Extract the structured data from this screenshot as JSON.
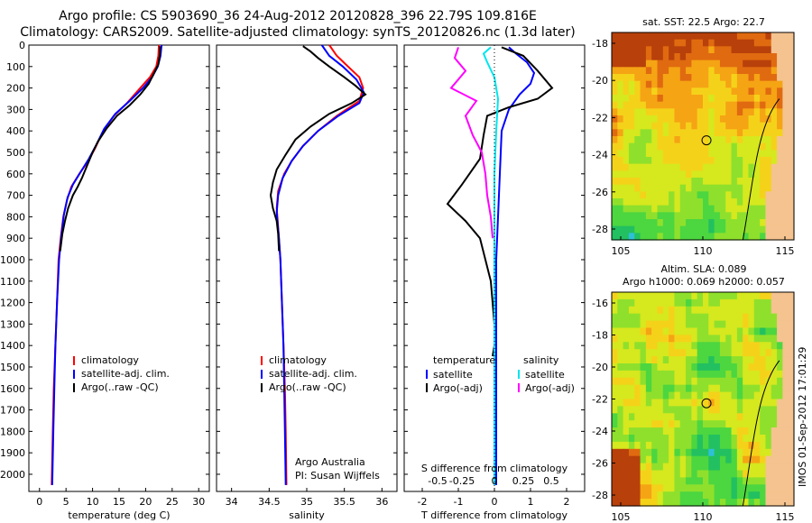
{
  "header": {
    "line1": "Argo profile: CS 5903690_36 24-Aug-2012 20120828_396 22.79S 109.816E",
    "line2": "Climatology: CARS2009. Satellite-adjusted climatology: synTS_20120826.nc (1.3d later)"
  },
  "colors": {
    "climatology": "#ff0000",
    "satellite": "#0000ff",
    "argo": "#000000",
    "sat_salinity": "#00e5ee",
    "argo_salinity_diff": "#ff00ff"
  },
  "chart_data": [
    {
      "type": "line",
      "xlabel": "temperature (deg C)",
      "xlim": [
        -2,
        32
      ],
      "xticks": [
        0,
        5,
        10,
        15,
        20,
        25,
        30
      ],
      "ylim": [
        2080,
        0
      ],
      "yticks": [
        0,
        100,
        200,
        300,
        400,
        500,
        600,
        700,
        800,
        900,
        1000,
        1100,
        1200,
        1300,
        1400,
        1500,
        1600,
        1700,
        1800,
        1900,
        2000
      ],
      "legend": [
        "climatology",
        "satellite-adj. clim.",
        "Argo(..raw -QC)"
      ],
      "series": [
        {
          "name": "climatology",
          "color": "#ff0000",
          "points": [
            [
              22.5,
              0
            ],
            [
              22.4,
              50
            ],
            [
              22.0,
              100
            ],
            [
              20.8,
              150
            ],
            [
              19.0,
              200
            ],
            [
              16.5,
              270
            ],
            [
              14.0,
              330
            ],
            [
              12.0,
              400
            ],
            [
              10.5,
              480
            ],
            [
              9.2,
              540
            ],
            [
              7.5,
              600
            ],
            [
              6.0,
              660
            ],
            [
              5.2,
              720
            ],
            [
              4.5,
              800
            ],
            [
              4.0,
              900
            ],
            [
              3.6,
              1000
            ],
            [
              3.3,
              1200
            ],
            [
              3.0,
              1400
            ],
            [
              2.7,
              1600
            ],
            [
              2.5,
              1800
            ],
            [
              2.3,
              2050
            ]
          ]
        },
        {
          "name": "satellite-adj. clim.",
          "color": "#0000ff",
          "points": [
            [
              23.0,
              0
            ],
            [
              22.8,
              50
            ],
            [
              22.3,
              100
            ],
            [
              21.2,
              150
            ],
            [
              19.5,
              200
            ],
            [
              17.0,
              260
            ],
            [
              14.3,
              320
            ],
            [
              12.2,
              390
            ],
            [
              10.6,
              470
            ],
            [
              9.3,
              530
            ],
            [
              7.8,
              590
            ],
            [
              6.3,
              650
            ],
            [
              5.3,
              710
            ],
            [
              4.6,
              790
            ],
            [
              4.1,
              890
            ],
            [
              3.7,
              1000
            ],
            [
              3.3,
              1200
            ],
            [
              3.0,
              1400
            ],
            [
              2.8,
              1600
            ],
            [
              2.6,
              1800
            ],
            [
              2.4,
              2050
            ]
          ]
        },
        {
          "name": "Argo(..raw -QC)",
          "color": "#000000",
          "points": [
            [
              22.7,
              5
            ],
            [
              22.7,
              40
            ],
            [
              22.4,
              90
            ],
            [
              21.6,
              130
            ],
            [
              20.6,
              180
            ],
            [
              19.0,
              230
            ],
            [
              17.0,
              280
            ],
            [
              14.6,
              330
            ],
            [
              12.6,
              390
            ],
            [
              11.0,
              450
            ],
            [
              10.0,
              500
            ],
            [
              9.0,
              560
            ],
            [
              8.0,
              620
            ],
            [
              7.2,
              660
            ],
            [
              6.3,
              700
            ],
            [
              5.4,
              760
            ],
            [
              4.8,
              820
            ],
            [
              4.3,
              880
            ],
            [
              3.9,
              960
            ]
          ]
        }
      ]
    },
    {
      "type": "line",
      "xlabel": "salinity",
      "xlim": [
        33.8,
        36.2
      ],
      "xticks": [
        34,
        34.5,
        35,
        35.5,
        36
      ],
      "ylim": [
        2080,
        0
      ],
      "legend": [
        "climatology",
        "satellite-adj. clim.",
        "Argo(..raw -QC)"
      ],
      "annotation": [
        "Argo Australia",
        "PI: Susan Wijffels"
      ],
      "series": [
        {
          "name": "climatology",
          "color": "#ff0000",
          "points": [
            [
              35.3,
              0
            ],
            [
              35.4,
              50
            ],
            [
              35.55,
              100
            ],
            [
              35.7,
              150
            ],
            [
              35.75,
              200
            ],
            [
              35.7,
              260
            ],
            [
              35.4,
              330
            ],
            [
              35.15,
              400
            ],
            [
              34.95,
              470
            ],
            [
              34.8,
              540
            ],
            [
              34.7,
              600
            ],
            [
              34.62,
              680
            ],
            [
              34.6,
              760
            ],
            [
              34.62,
              850
            ],
            [
              34.65,
              1000
            ],
            [
              34.67,
              1200
            ],
            [
              34.69,
              1400
            ],
            [
              34.71,
              1600
            ],
            [
              34.72,
              1800
            ],
            [
              34.73,
              2050
            ]
          ]
        },
        {
          "name": "satellite-adj. clim.",
          "color": "#0000ff",
          "points": [
            [
              35.2,
              0
            ],
            [
              35.3,
              50
            ],
            [
              35.48,
              100
            ],
            [
              35.66,
              160
            ],
            [
              35.76,
              220
            ],
            [
              35.7,
              270
            ],
            [
              35.42,
              330
            ],
            [
              35.15,
              400
            ],
            [
              34.95,
              470
            ],
            [
              34.8,
              540
            ],
            [
              34.68,
              620
            ],
            [
              34.62,
              700
            ],
            [
              34.6,
              780
            ],
            [
              34.63,
              900
            ],
            [
              34.65,
              1000
            ],
            [
              34.67,
              1200
            ],
            [
              34.69,
              1400
            ],
            [
              34.7,
              1600
            ],
            [
              34.71,
              1800
            ],
            [
              34.72,
              2050
            ]
          ]
        },
        {
          "name": "Argo(..raw -QC)",
          "color": "#000000",
          "points": [
            [
              34.95,
              5
            ],
            [
              35.05,
              30
            ],
            [
              35.15,
              60
            ],
            [
              35.3,
              100
            ],
            [
              35.5,
              150
            ],
            [
              35.65,
              190
            ],
            [
              35.78,
              230
            ],
            [
              35.6,
              270
            ],
            [
              35.3,
              320
            ],
            [
              35.05,
              380
            ],
            [
              34.85,
              440
            ],
            [
              34.72,
              510
            ],
            [
              34.6,
              580
            ],
            [
              34.55,
              640
            ],
            [
              34.52,
              700
            ],
            [
              34.55,
              760
            ],
            [
              34.6,
              820
            ],
            [
              34.62,
              880
            ],
            [
              34.63,
              960
            ]
          ]
        }
      ]
    },
    {
      "type": "line",
      "xlabel": "T difference from climatology",
      "xlabel_top": "S difference from climatology",
      "xlim": [
        -2.5,
        2.5
      ],
      "xticks": [
        -2,
        -1,
        0,
        1,
        2
      ],
      "xticks_top": [
        "-0.5",
        "-0.25",
        "0",
        "0.25",
        "0.5"
      ],
      "ylim": [
        2080,
        0
      ],
      "legend_left_title": "temperature",
      "legend_left": [
        "satellite",
        "Argo(-adj)"
      ],
      "legend_right_title": "salinity",
      "legend_right": [
        "satellite",
        "Argo(-adj)"
      ],
      "series": [
        {
          "name": "T satellite",
          "color": "#0000ff",
          "points": [
            [
              0.4,
              10
            ],
            [
              0.6,
              40
            ],
            [
              0.9,
              80
            ],
            [
              1.1,
              130
            ],
            [
              1.0,
              180
            ],
            [
              0.7,
              230
            ],
            [
              0.4,
              300
            ],
            [
              0.2,
              400
            ],
            [
              0.15,
              600
            ],
            [
              0.1,
              800
            ],
            [
              0.05,
              1000
            ],
            [
              0.05,
              1500
            ],
            [
              0.05,
              2050
            ]
          ]
        },
        {
          "name": "T Argo(-adj)",
          "color": "#000000",
          "points": [
            [
              0.2,
              10
            ],
            [
              0.8,
              50
            ],
            [
              1.2,
              120
            ],
            [
              1.6,
              200
            ],
            [
              1.2,
              250
            ],
            [
              0.4,
              290
            ],
            [
              -0.2,
              330
            ],
            [
              -0.3,
              420
            ],
            [
              -0.4,
              530
            ],
            [
              -0.9,
              650
            ],
            [
              -1.3,
              740
            ],
            [
              -0.8,
              820
            ],
            [
              -0.4,
              900
            ],
            [
              -0.1,
              1100
            ],
            [
              0.0,
              1300
            ],
            [
              0.0,
              1400
            ],
            [
              -0.05,
              1450
            ]
          ]
        },
        {
          "name": "S satellite",
          "color": "#00e5ee",
          "points": [
            [
              -0.1,
              10
            ],
            [
              -0.3,
              40
            ],
            [
              -0.2,
              80
            ],
            [
              0.0,
              150
            ],
            [
              0.1,
              250
            ],
            [
              0.05,
              400
            ],
            [
              0.0,
              600
            ],
            [
              0.0,
              1000
            ],
            [
              0.0,
              1500
            ],
            [
              0.0,
              2050
            ]
          ]
        },
        {
          "name": "S Argo(-adj)",
          "color": "#ff00ff",
          "points": [
            [
              -1.0,
              10
            ],
            [
              -1.1,
              60
            ],
            [
              -0.8,
              120
            ],
            [
              -1.2,
              200
            ],
            [
              -0.5,
              260
            ],
            [
              -0.8,
              330
            ],
            [
              -0.6,
              420
            ],
            [
              -0.35,
              500
            ],
            [
              -0.25,
              600
            ],
            [
              -0.2,
              700
            ],
            [
              -0.1,
              800
            ],
            [
              -0.05,
              900
            ]
          ]
        }
      ]
    }
  ],
  "map_sst": {
    "title": "sat. SST: 22.5 Argo: 22.7",
    "yticks": [
      "-18",
      "-20",
      "-22",
      "-24",
      "-26",
      "-28"
    ],
    "xticks": [
      "105",
      "110",
      "115"
    ]
  },
  "map_sla": {
    "title1": "Altim. SLA: 0.089",
    "title2": "Argo h1000: 0.069 h2000: 0.057",
    "yticks": [
      "-16",
      "-18",
      "-20",
      "-22",
      "-24",
      "-26",
      "-28"
    ],
    "xticks": [
      "105",
      "110",
      "115"
    ]
  },
  "stamp": "IMOS 01-Sep-2012 17:01:29"
}
